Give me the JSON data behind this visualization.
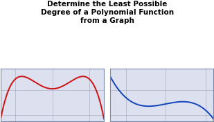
{
  "title_lines": [
    "Determine the Least Possible",
    "Degree of a Polynomial Function",
    "from a Graph"
  ],
  "title_fontsize": 7.5,
  "title_fontweight": "bold",
  "bg_color": "#ffffff",
  "grid_color": "#b0b0c8",
  "grid_bg": "#dde0ee",
  "red_color": "#cc1111",
  "blue_color": "#1144bb",
  "line_width": 1.4,
  "spine_color": "#7788aa"
}
